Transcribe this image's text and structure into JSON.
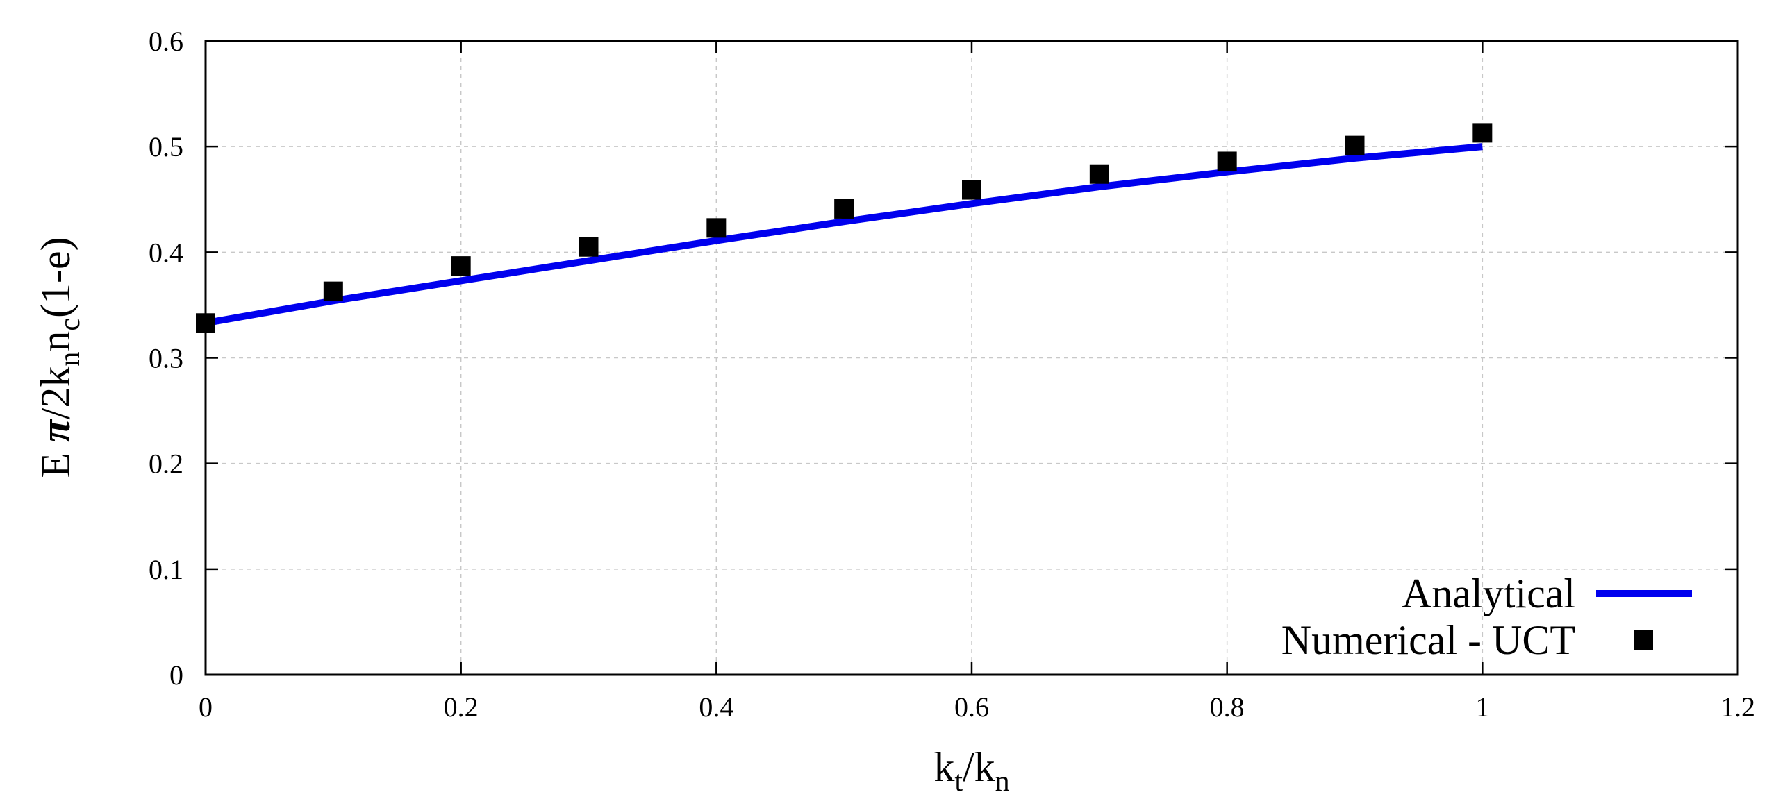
{
  "chart_data": {
    "type": "line",
    "title": "",
    "xlabel": {
      "base1": "k",
      "sub1": "t",
      "sep": "/",
      "base2": "k",
      "sub2": "n"
    },
    "ylabel": {
      "part1": "E ",
      "pi": "π",
      "part2": "/2k",
      "sub1": "n",
      "part3": "n",
      "sub2": "c",
      "part4": "(1-e)"
    },
    "xlim": [
      0,
      1.2
    ],
    "ylim": [
      0,
      0.6
    ],
    "xticks": [
      0,
      0.2,
      0.4,
      0.6,
      0.8,
      1,
      1.2
    ],
    "yticks": [
      0,
      0.1,
      0.2,
      0.3,
      0.4,
      0.5,
      0.6
    ],
    "xtick_labels": [
      "0",
      "0.2",
      "0.4",
      "0.6",
      "0.8",
      "1",
      "1.2"
    ],
    "ytick_labels": [
      "0",
      "0.1",
      "0.2",
      "0.3",
      "0.4",
      "0.5",
      "0.6"
    ],
    "grid": true,
    "legend_position": "bottom-right",
    "series": [
      {
        "name": "Analytical",
        "kind": "line",
        "color": "#0000ee",
        "x": [
          0,
          0.1,
          0.2,
          0.3,
          0.4,
          0.5,
          0.6,
          0.7,
          0.8,
          0.9,
          1.0
        ],
        "y": [
          0.333,
          0.354,
          0.373,
          0.392,
          0.411,
          0.429,
          0.446,
          0.462,
          0.476,
          0.489,
          0.5
        ]
      },
      {
        "name": "Numerical - UCT",
        "kind": "scatter",
        "marker": "square",
        "color": "#000000",
        "x": [
          0,
          0.1,
          0.2,
          0.3,
          0.4,
          0.5,
          0.6,
          0.7,
          0.8,
          0.9,
          1.0
        ],
        "y": [
          0.333,
          0.363,
          0.387,
          0.405,
          0.423,
          0.441,
          0.459,
          0.474,
          0.486,
          0.501,
          0.513
        ]
      }
    ]
  }
}
